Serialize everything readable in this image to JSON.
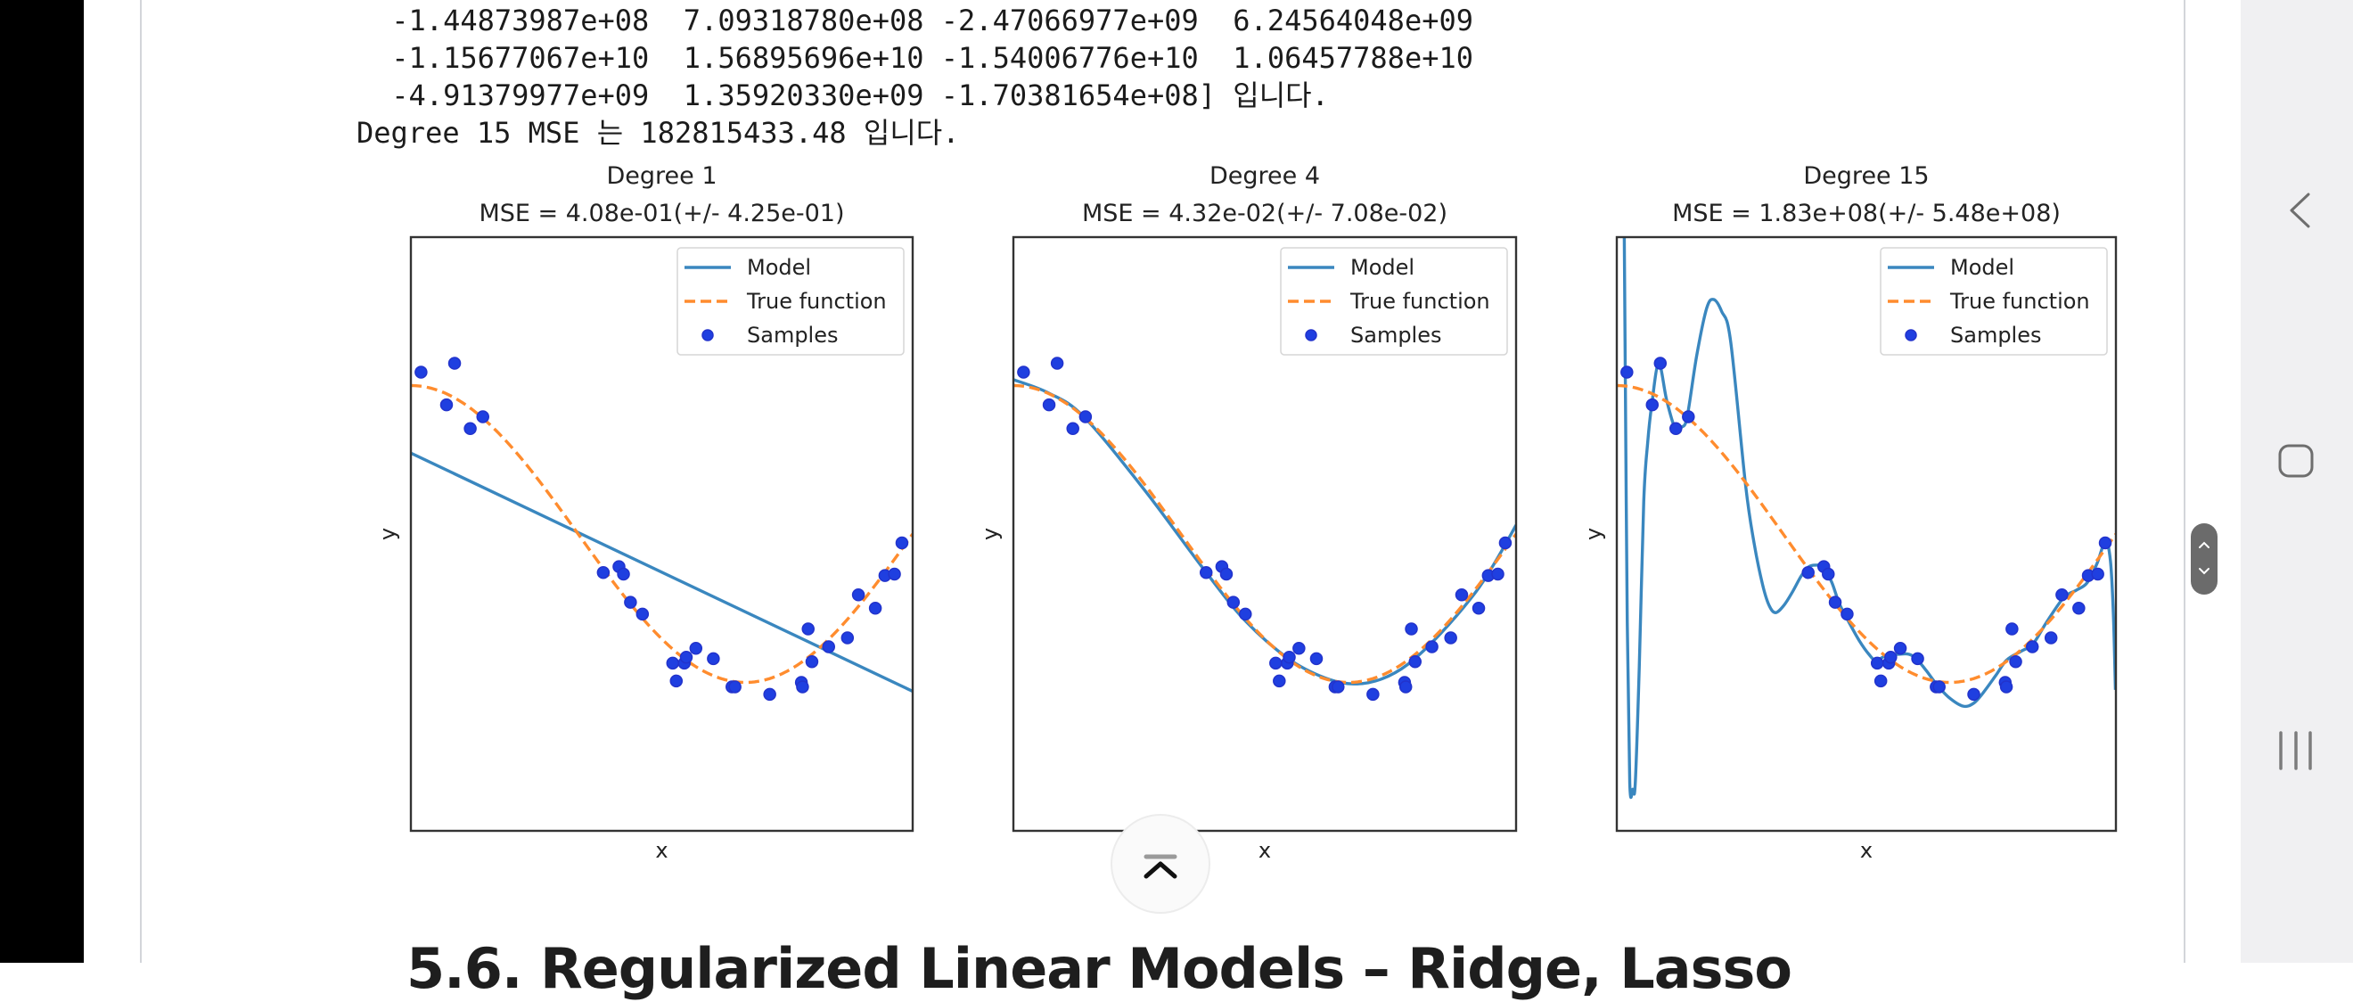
{
  "output": {
    "lines": [
      " -1.44873987e+08  7.09318780e+08 -2.47066977e+09  6.24564048e+09",
      " -1.15677067e+10  1.56895696e+10 -1.54006776e+10  1.06457788e+10",
      " -4.91379977e+09  1.35920330e+09 -1.70381654e+08] 입니다.",
      "Degree 15 MSE 는 182815433.48 입니다."
    ]
  },
  "section_heading": "5.6. Regularized Linear Models – Ridge, Lasso",
  "nav": {
    "back_icon": "chevron-left-icon",
    "home_icon": "rounded-square-icon",
    "recents_icon": "three-bars-icon",
    "scroll_top_icon": "arrow-up-to-bar-icon",
    "scroll_handle_icon": "up-down-chevron-icon"
  },
  "colors": {
    "model": "#3a87bf",
    "true_function": "#ff8c2e",
    "samples": "#1f3fe0",
    "sample_edge": "#2233cc",
    "frame": "#333333",
    "nav_bg": "#f0f0f2"
  },
  "chart_data": [
    {
      "type": "line",
      "title": "Degree 1",
      "subtitle": "MSE = 4.08e-01(+/- 4.25e-01)",
      "xlabel": "x",
      "ylabel": "y",
      "xlim": [
        0,
        1
      ],
      "ylim": [
        -2,
        2
      ],
      "legend": {
        "placement": "top-right",
        "entries": [
          "Model",
          "True function",
          "Samples"
        ]
      },
      "series": [
        {
          "name": "Model",
          "style": "solid",
          "points": [
            [
              0,
              0.545
            ],
            [
              1,
              -1.06
            ]
          ]
        },
        {
          "name": "True function",
          "style": "dashed",
          "function": "cos(1.5*pi*x)"
        },
        {
          "name": "Samples",
          "style": "scatter",
          "ref": "samples"
        }
      ]
    },
    {
      "type": "line",
      "title": "Degree 4",
      "subtitle": "MSE = 4.32e-02(+/- 7.08e-02)",
      "xlabel": "x",
      "ylabel": "y",
      "xlim": [
        0,
        1
      ],
      "ylim": [
        -2,
        2
      ],
      "legend": {
        "placement": "top-right",
        "entries": [
          "Model",
          "True function",
          "Samples"
        ]
      },
      "series": [
        {
          "name": "Model",
          "style": "solid",
          "points": [
            [
              0,
              1.04
            ],
            [
              0.07,
              0.95
            ],
            [
              0.14,
              0.79
            ],
            [
              0.26,
              0.3
            ],
            [
              0.377,
              -0.23
            ],
            [
              0.46,
              -0.58
            ],
            [
              0.547,
              -0.84
            ],
            [
              0.62,
              -0.97
            ],
            [
              0.676,
              -1.01
            ],
            [
              0.73,
              -0.98
            ],
            [
              0.784,
              -0.88
            ],
            [
              0.85,
              -0.67
            ],
            [
              0.92,
              -0.39
            ],
            [
              0.96,
              -0.18
            ],
            [
              1.0,
              0.06
            ]
          ]
        },
        {
          "name": "True function",
          "style": "dashed",
          "function": "cos(1.5*pi*x)"
        },
        {
          "name": "Samples",
          "style": "scatter",
          "ref": "samples"
        }
      ]
    },
    {
      "type": "line",
      "title": "Degree 15",
      "subtitle": "MSE = 1.83e+08(+/- 5.48e+08)",
      "xlabel": "x",
      "ylabel": "y",
      "xlim": [
        0,
        1
      ],
      "ylim": [
        -2,
        2
      ],
      "legend": {
        "placement": "top-right",
        "entries": [
          "Model",
          "True function",
          "Samples"
        ]
      },
      "series": [
        {
          "name": "Model",
          "style": "solid",
          "points": [
            [
              0.013,
              2.3
            ],
            [
              0.015,
              2.0
            ],
            [
              0.017,
              1.09
            ],
            [
              0.021,
              -0.6
            ],
            [
              0.026,
              -1.68
            ],
            [
              0.032,
              -1.72
            ],
            [
              0.037,
              -1.68
            ],
            [
              0.045,
              -0.9
            ],
            [
              0.054,
              0.22
            ],
            [
              0.062,
              0.62
            ],
            [
              0.07,
              0.87
            ],
            [
              0.084,
              1.15
            ],
            [
              0.1,
              0.9
            ],
            [
              0.117,
              0.71
            ],
            [
              0.13,
              0.72
            ],
            [
              0.141,
              0.79
            ],
            [
              0.16,
              1.2
            ],
            [
              0.18,
              1.52
            ],
            [
              0.194,
              1.58
            ],
            [
              0.21,
              1.5
            ],
            [
              0.228,
              1.3
            ],
            [
              0.258,
              0.33
            ],
            [
              0.275,
              -0.06
            ],
            [
              0.292,
              -0.34
            ],
            [
              0.305,
              -0.48
            ],
            [
              0.318,
              -0.53
            ],
            [
              0.335,
              -0.48
            ],
            [
              0.352,
              -0.39
            ],
            [
              0.37,
              -0.28
            ],
            [
              0.385,
              -0.22
            ],
            [
              0.4,
              -0.21
            ],
            [
              0.412,
              -0.22
            ],
            [
              0.43,
              -0.32
            ],
            [
              0.446,
              -0.47
            ],
            [
              0.466,
              -0.6
            ],
            [
              0.486,
              -0.72
            ],
            [
              0.505,
              -0.81
            ],
            [
              0.519,
              -0.85
            ],
            [
              0.54,
              -0.82
            ],
            [
              0.566,
              -0.81
            ],
            [
              0.585,
              -0.81
            ],
            [
              0.6,
              -0.84
            ],
            [
              0.62,
              -0.92
            ],
            [
              0.64,
              -1.01
            ],
            [
              0.665,
              -1.1
            ],
            [
              0.694,
              -1.16
            ],
            [
              0.715,
              -1.14
            ],
            [
              0.734,
              -1.07
            ],
            [
              0.76,
              -0.95
            ],
            [
              0.781,
              -0.85
            ],
            [
              0.81,
              -0.79
            ],
            [
              0.834,
              -0.74
            ],
            [
              0.86,
              -0.6
            ],
            [
              0.895,
              -0.43
            ],
            [
              0.92,
              -0.38
            ],
            [
              0.942,
              -0.33
            ],
            [
              0.962,
              -0.2
            ],
            [
              0.979,
              -0.05
            ],
            [
              0.989,
              -0.18
            ],
            [
              0.995,
              -0.55
            ],
            [
              0.999,
              -1.05
            ]
          ]
        },
        {
          "name": "True function",
          "style": "dashed",
          "function": "cos(1.5*pi*x)"
        },
        {
          "name": "Samples",
          "style": "scatter",
          "ref": "samples"
        }
      ]
    }
  ],
  "samples": [
    [
      0.0202,
      1.09
    ],
    [
      0.071,
      0.87
    ],
    [
      0.0871,
      1.15
    ],
    [
      0.1183,
      0.71
    ],
    [
      0.1434,
      0.79
    ],
    [
      0.3834,
      -0.26
    ],
    [
      0.4147,
      -0.22
    ],
    [
      0.4237,
      -0.27
    ],
    [
      0.4376,
      -0.46
    ],
    [
      0.4615,
      -0.54
    ],
    [
      0.5218,
      -0.87
    ],
    [
      0.5289,
      -0.99
    ],
    [
      0.5449,
      -0.87
    ],
    [
      0.5488,
      -0.83
    ],
    [
      0.568,
      -0.77
    ],
    [
      0.6028,
      -0.84
    ],
    [
      0.6399,
      -1.03
    ],
    [
      0.6459,
      -1.03
    ],
    [
      0.7152,
      -1.08
    ],
    [
      0.7782,
      -1.0
    ],
    [
      0.7805,
      -1.03
    ],
    [
      0.7917,
      -0.64
    ],
    [
      0.7992,
      -0.86
    ],
    [
      0.8326,
      -0.76
    ],
    [
      0.87,
      -0.7
    ],
    [
      0.8918,
      -0.41
    ],
    [
      0.9256,
      -0.5
    ],
    [
      0.9447,
      -0.28
    ],
    [
      0.9637,
      -0.27
    ],
    [
      0.9786,
      -0.06
    ]
  ]
}
